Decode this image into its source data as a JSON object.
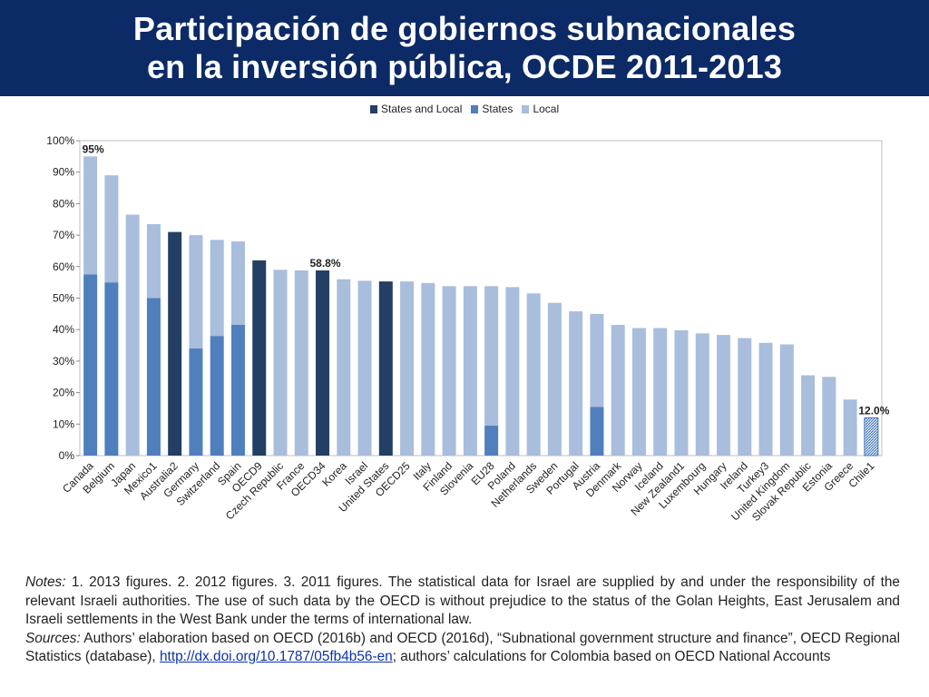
{
  "title": {
    "line1": "Participación de gobiernos subnacionales",
    "line2": "en la inversión pública, OCDE 2011-2013"
  },
  "colors": {
    "title_bg": "#0c2a66",
    "states_and_local": "#243f64",
    "states": "#4f7fbd",
    "local": "#a9bddc",
    "chile_hatch": "#3f73b6"
  },
  "legend": [
    {
      "label": "States and Local",
      "key": "states_and_local"
    },
    {
      "label": "States",
      "key": "states"
    },
    {
      "label": "Local",
      "key": "local"
    }
  ],
  "chart_data": {
    "type": "bar",
    "stacked": true,
    "ylim": [
      0,
      100
    ],
    "yticks": [
      "0%",
      "10%",
      "20%",
      "30%",
      "40%",
      "50%",
      "60%",
      "70%",
      "80%",
      "90%",
      "100%"
    ],
    "grid": false,
    "legend_position": "top-center",
    "categories": [
      "Canada",
      "Belgium",
      "Japan",
      "Mexico1",
      "Australia2",
      "Germany",
      "Switzerland",
      "Spain",
      "OECD9",
      "Czech Republic",
      "France",
      "OECD34",
      "Korea",
      "Israel",
      "United States",
      "OECD25",
      "Italy",
      "Finland",
      "Slovenia",
      "EU28",
      "Poland",
      "Netherlands",
      "Sweden",
      "Portugal",
      "Austria",
      "Denmark",
      "Norway",
      "Iceland",
      "New Zealand1",
      "Luxembourg",
      "Hungary",
      "Ireland",
      "Turkey3",
      "United Kingdom",
      "Slovak Republic",
      "Estonia",
      "Greece",
      "Chile1"
    ],
    "series": [
      {
        "name": "States and Local",
        "values": [
          0,
          0,
          0,
          0,
          71,
          0,
          0,
          0,
          62,
          0,
          0,
          58.8,
          0,
          0,
          55.3,
          0,
          0,
          0,
          0,
          0,
          0,
          0,
          0,
          0,
          0,
          0,
          0,
          0,
          0,
          0,
          0,
          0,
          0,
          0,
          0,
          0,
          0,
          0
        ]
      },
      {
        "name": "States",
        "values": [
          57.5,
          55,
          0,
          50,
          0,
          34,
          38,
          41.5,
          0,
          0,
          0,
          0,
          0,
          0,
          0,
          0,
          0,
          0,
          0,
          9.5,
          0,
          0,
          0,
          0,
          15.5,
          0,
          0,
          0,
          0,
          0,
          0,
          0,
          0,
          0,
          0,
          0,
          0,
          0
        ]
      },
      {
        "name": "Local",
        "values": [
          37.5,
          34,
          76.5,
          23.5,
          0,
          36,
          30.5,
          26.5,
          0,
          59,
          58.8,
          0,
          56,
          55.5,
          0,
          55.3,
          54.8,
          53.8,
          53.8,
          44.3,
          53.5,
          51.5,
          48.5,
          45.8,
          29.5,
          41.5,
          40.5,
          40.5,
          39.8,
          38.8,
          38.3,
          37.3,
          35.8,
          35.3,
          25.5,
          25,
          17.8,
          12
        ]
      }
    ],
    "annotations": [
      {
        "category": "Canada",
        "text": "95%"
      },
      {
        "category": "OECD34",
        "text": "58.8%"
      },
      {
        "category": "Chile1",
        "text": "12.0%"
      }
    ],
    "hatched_category": "Chile1"
  },
  "notes": {
    "notes_label": "Notes:",
    "notes_text": " 1. 2013 figures. 2. 2012 figures. 3. 2011 figures. The statistical data for Israel are supplied by and under the responsibility of the relevant Israeli authorities. The use of such data by the OECD is without prejudice to the status of the Golan Heights, East Jerusalem and Israeli settlements in the West Bank under the terms of international law.",
    "sources_label": "Sources:",
    "sources_text_1": " Authors’ elaboration based on OECD (2016b) and OECD (2016d), “Subnational government structure and finance”, OECD Regional Statistics (database), ",
    "sources_link": "http://dx.doi.org/10.1787/05fb4b56-en",
    "sources_text_2": "; authors’ calculations for Colombia based on OECD National Accounts"
  }
}
